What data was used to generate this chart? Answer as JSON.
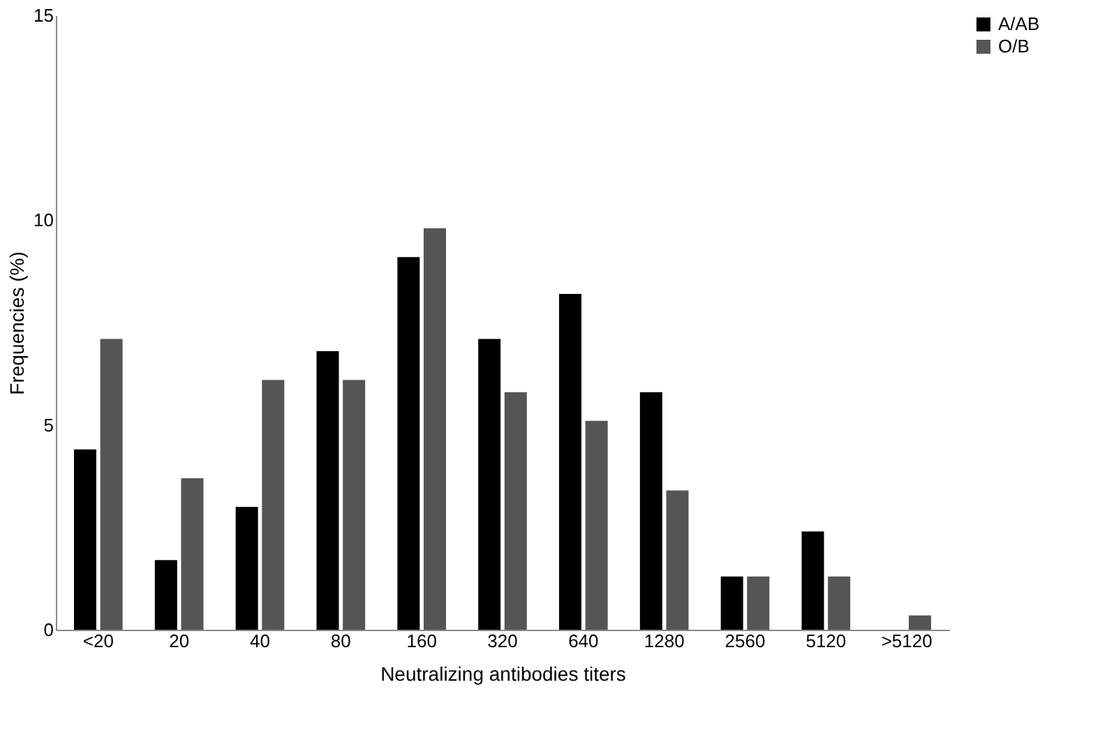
{
  "chart_data": {
    "type": "bar",
    "xlabel": "Neutralizing antibodies titers",
    "ylabel": "Frequencies (%)",
    "categories": [
      "<20",
      "20",
      "40",
      "80",
      "160",
      "320",
      "640",
      "1280",
      "2560",
      "5120",
      ">5120"
    ],
    "series": [
      {
        "name": "A/AB",
        "color": "#000000",
        "values": [
          4.4,
          1.7,
          3.0,
          6.8,
          9.1,
          7.1,
          8.2,
          5.8,
          1.3,
          2.4,
          0
        ]
      },
      {
        "name": "O/B",
        "color": "#555555",
        "values": [
          7.1,
          3.7,
          6.1,
          6.1,
          9.8,
          5.8,
          5.1,
          3.4,
          1.3,
          1.3,
          0.35
        ]
      }
    ],
    "ylim": [
      0,
      15
    ],
    "yticks": [
      0,
      5,
      10,
      15
    ],
    "grid": false,
    "legend": "right"
  }
}
